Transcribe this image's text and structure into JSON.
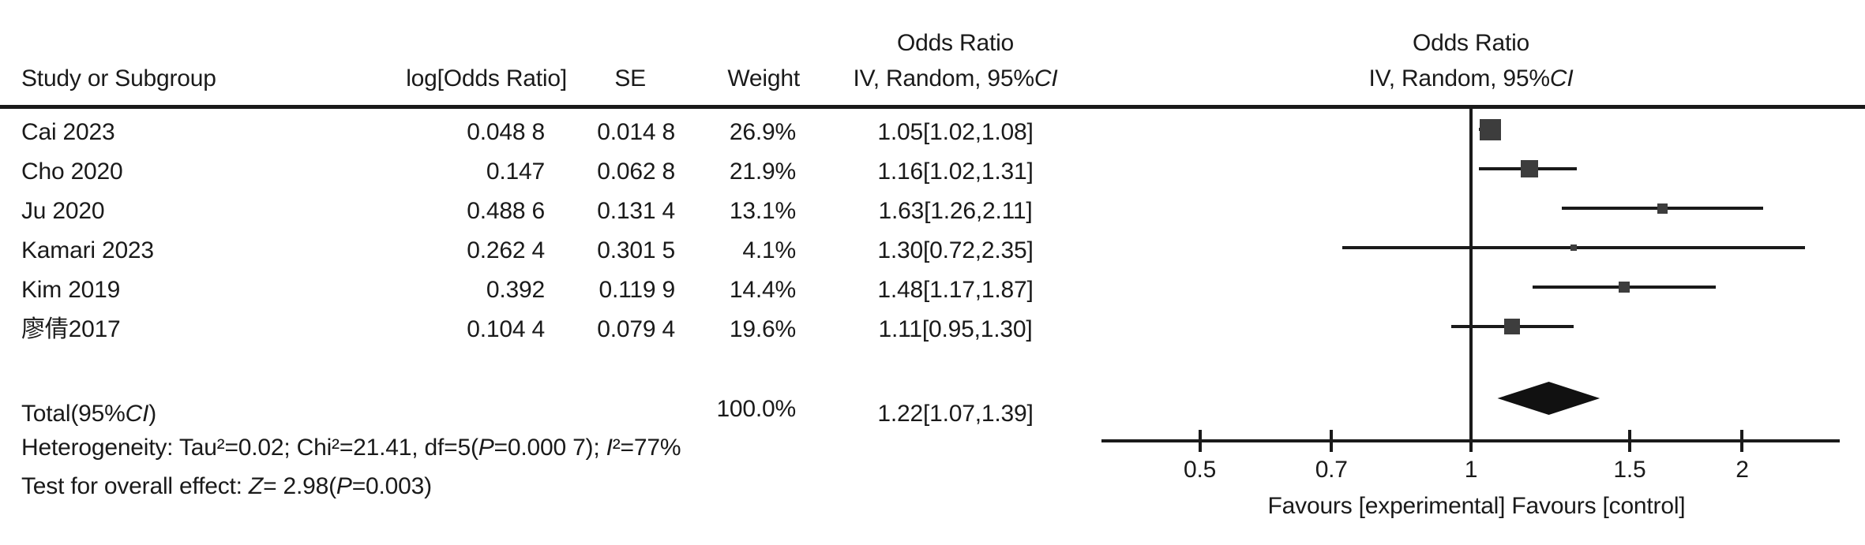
{
  "figure": {
    "headers": {
      "study": "Study or Subgroup",
      "log_or": "log[Odds Ratio]",
      "se": "SE",
      "weight": "Weight",
      "or_title": "Odds Ratio",
      "iv_random": "IV, Random, 95%",
      "ci": "CI"
    },
    "total_row": {
      "label_pre": "Total(95%",
      "label_ci": "CI",
      "label_post": ")",
      "weight": "100.0%",
      "or_text": "1.22[1.07,1.39]"
    },
    "heterogeneity": {
      "p1": "Heterogeneity: Tau²=0.02; Chi²=21.41, df=5(",
      "p_italic": "P",
      "p2": "=0.000 7); ",
      "i_italic": "I",
      "p3": "²=77%"
    },
    "overall_effect": {
      "p1": "Test for overall effect: ",
      "z_italic": "Z",
      "p2": "= 2.98(",
      "p_italic": "P",
      "p3": "=0.003)"
    }
  },
  "chart_data": {
    "type": "forest",
    "effect_measure": "Odds Ratio",
    "model": "IV, Random",
    "ci_level": "95% CI",
    "x_scale": "log",
    "x_ticks": [
      0.5,
      0.7,
      1,
      1.5,
      2
    ],
    "x_tick_labels": [
      "0.5",
      "0.7",
      "1",
      "1.5",
      "2"
    ],
    "xlabel": "Favours [experimental] Favours [control]",
    "studies": [
      {
        "name": "Cai 2023",
        "log_or": "0.048 8",
        "se": "0.014 8",
        "weight_label": "26.9%",
        "weight_pct": 26.9,
        "or": 1.05,
        "ci_low": 1.02,
        "ci_high": 1.08,
        "or_ci_text": "1.05[1.02,1.08]"
      },
      {
        "name": "Cho 2020",
        "log_or": "0.147",
        "se": "0.062 8",
        "weight_label": "21.9%",
        "weight_pct": 21.9,
        "or": 1.16,
        "ci_low": 1.02,
        "ci_high": 1.31,
        "or_ci_text": "1.16[1.02,1.31]"
      },
      {
        "name": "Ju 2020",
        "log_or": "0.488 6",
        "se": "0.131 4",
        "weight_label": "13.1%",
        "weight_pct": 13.1,
        "or": 1.63,
        "ci_low": 1.26,
        "ci_high": 2.11,
        "or_ci_text": "1.63[1.26,2.11]"
      },
      {
        "name": "Kamari 2023",
        "log_or": "0.262 4",
        "se": "0.301 5",
        "weight_label": "4.1%",
        "weight_pct": 4.1,
        "or": 1.3,
        "ci_low": 0.72,
        "ci_high": 2.35,
        "or_ci_text": "1.30[0.72,2.35]"
      },
      {
        "name": "Kim 2019",
        "log_or": "0.392",
        "se": "0.119 9",
        "weight_label": "14.4%",
        "weight_pct": 14.4,
        "or": 1.48,
        "ci_low": 1.17,
        "ci_high": 1.87,
        "or_ci_text": "1.48[1.17,1.87]"
      },
      {
        "name": "廖倩2017",
        "log_or": "0.104 4",
        "se": "0.079 4",
        "weight_label": "19.6%",
        "weight_pct": 19.6,
        "or": 1.11,
        "ci_low": 0.95,
        "ci_high": 1.3,
        "or_ci_text": "1.11[0.95,1.30]"
      }
    ],
    "total": {
      "or": 1.22,
      "ci_low": 1.07,
      "ci_high": 1.39,
      "weight_pct": 100.0
    },
    "heterogeneity": {
      "tau2": 0.02,
      "chi2": 21.41,
      "df": 5,
      "p": "0.000 7",
      "i2": "77%"
    },
    "overall_effect": {
      "z": 2.98,
      "p": 0.003
    },
    "colors": {
      "marker": "#3d3d3d",
      "line": "#1a1a1a",
      "diamond": "#111111",
      "text": "#1a1a1a"
    }
  }
}
